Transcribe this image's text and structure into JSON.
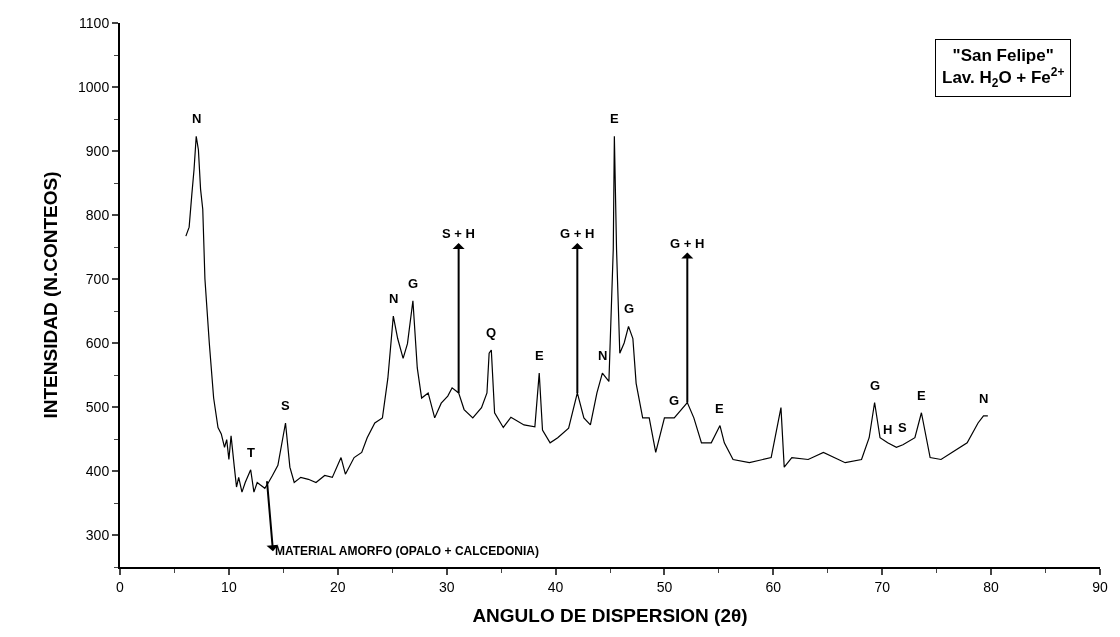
{
  "chart_data": {
    "type": "line",
    "title": "\"San Felipe\"\nLav. H$_{2}$O + Fe$^{2+}$",
    "xlabel": "ANGULO DE DISPERSION (2θ)",
    "ylabel": "INTENSIDAD (N.CONTEOS)",
    "xlim": [
      0,
      90
    ],
    "xticks": [
      0,
      10,
      20,
      30,
      40,
      50,
      60,
      70,
      80,
      90
    ],
    "ylim": [
      250,
      1100
    ],
    "yticks": [
      300,
      400,
      500,
      600,
      700,
      800,
      900,
      1000,
      1100
    ],
    "marker": "none",
    "line_style": "solid",
    "series": [
      {
        "color": "#000000",
        "x": [
          6.05,
          6.35,
          6.6,
          6.8,
          7.0,
          7.2,
          7.4,
          7.6,
          7.8,
          8.2,
          8.6,
          9.0,
          9.3,
          9.6,
          9.8,
          10.0,
          10.2,
          10.5,
          10.7,
          10.9,
          11.2,
          11.5,
          12.0,
          12.3,
          12.6,
          12.9,
          13.3,
          13.7,
          14.0,
          14.5,
          15.2,
          15.6,
          16.0,
          16.6,
          17.3,
          18.0,
          18.8,
          19.5,
          20.3,
          20.7,
          21.5,
          22.2,
          22.7,
          23.4,
          24.1,
          24.6,
          25.1,
          25.5,
          26.0,
          26.4,
          26.9,
          27.3,
          27.7,
          28.3,
          28.9,
          29.5,
          30.1,
          30.5,
          31.1,
          31.6,
          32.4,
          33.2,
          33.7,
          33.9,
          34.1,
          34.4,
          35.2,
          35.9,
          37.1,
          38.1,
          38.5,
          38.8,
          39.5,
          40.2,
          41.2,
          42.0,
          42.6,
          43.2,
          43.8,
          44.3,
          44.9,
          45.3,
          45.4,
          45.6,
          45.9,
          46.3,
          46.7,
          47.1,
          47.4,
          48.0,
          48.6,
          49.2,
          50.0,
          50.9,
          52.1,
          52.7,
          53.4,
          54.3,
          55.1,
          55.5,
          56.3,
          57.8,
          59.8,
          60.7,
          61.0,
          61.7,
          63.2,
          64.6,
          66.6,
          68.1,
          68.8,
          69.3,
          69.8,
          70.5,
          71.3,
          71.9,
          73.0,
          73.6,
          74.4,
          75.4,
          76.4,
          77.8,
          78.8,
          79.3,
          79.7
        ],
        "values": [
          767,
          781,
          833,
          871,
          923,
          902,
          840,
          809,
          700,
          600,
          514,
          468,
          458,
          437,
          449,
          418,
          455,
          406,
          375,
          390,
          367,
          382,
          402,
          367,
          382,
          378,
          373,
          384,
          393,
          409,
          475,
          406,
          382,
          390,
          387,
          382,
          393,
          390,
          421,
          395,
          421,
          429,
          452,
          475,
          483,
          545,
          642,
          607,
          576,
          599,
          666,
          561,
          514,
          522,
          483,
          506,
          517,
          530,
          522,
          496,
          483,
          499,
          522,
          584,
          589,
          491,
          468,
          484,
          472,
          469,
          553,
          464,
          444,
          452,
          467,
          522,
          483,
          472,
          522,
          553,
          540,
          747,
          923,
          747,
          584,
          600,
          626,
          607,
          537,
          483,
          483,
          429,
          483,
          483,
          507,
          483,
          444,
          444,
          471,
          444,
          418,
          413,
          421,
          499,
          406,
          421,
          418,
          429,
          413,
          418,
          452,
          507,
          452,
          444,
          437,
          441,
          452,
          491,
          421,
          418,
          429,
          444,
          475,
          486,
          486
        ]
      }
    ],
    "annotations": [
      {
        "text": "N",
        "x": 7.0,
        "y": 923
      },
      {
        "text": "T",
        "x": 12.0,
        "y": 402
      },
      {
        "text": "S",
        "x": 15.2,
        "y": 475
      },
      {
        "text": "N",
        "x": 25.1,
        "y": 642
      },
      {
        "text": "G",
        "x": 26.9,
        "y": 666
      },
      {
        "text": "S + H",
        "x": 31.1,
        "y": 522
      },
      {
        "text": "Q",
        "x": 34.1,
        "y": 589
      },
      {
        "text": "E",
        "x": 38.5,
        "y": 553
      },
      {
        "text": "G + H",
        "x": 42.0,
        "y": 522
      },
      {
        "text": "N",
        "x": 44.3,
        "y": 553
      },
      {
        "text": "E",
        "x": 45.4,
        "y": 923
      },
      {
        "text": "G",
        "x": 46.7,
        "y": 626
      },
      {
        "text": "G",
        "x": 50.9,
        "y": 483
      },
      {
        "text": "G + H",
        "x": 52.1,
        "y": 507
      },
      {
        "text": "E",
        "x": 55.1,
        "y": 471
      },
      {
        "text": "G",
        "x": 69.3,
        "y": 507
      },
      {
        "text": "H",
        "x": 70.5,
        "y": 437
      },
      {
        "text": "S",
        "x": 71.9,
        "y": 441
      },
      {
        "text": "E",
        "x": 73.6,
        "y": 491
      },
      {
        "text": "N",
        "x": 79.3,
        "y": 486
      },
      {
        "text": "MATERIAL AMORFO (OPALO + CALCEDONIA)",
        "x": 13.5,
        "y": 384
      }
    ]
  }
}
